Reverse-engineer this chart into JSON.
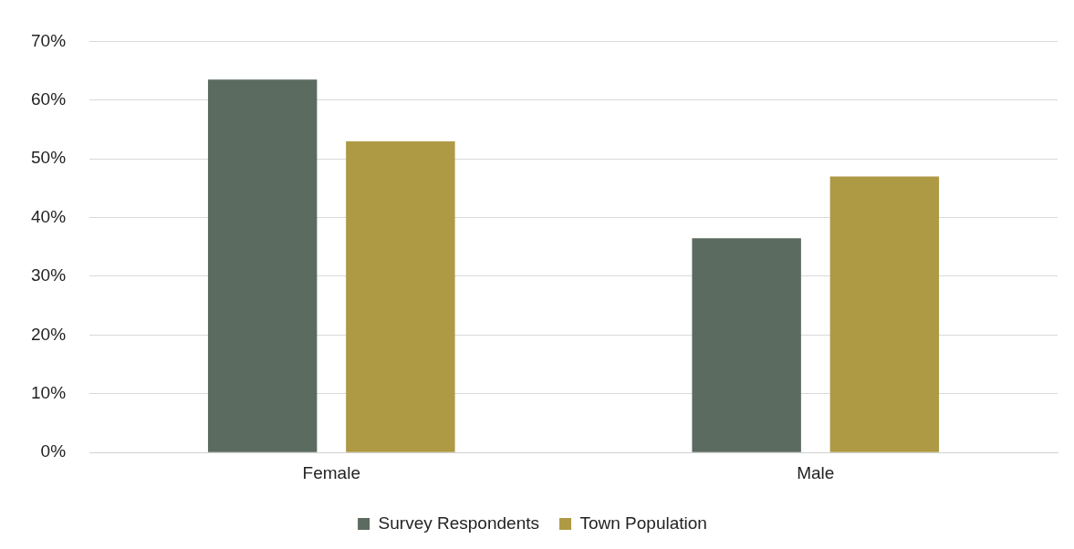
{
  "chart_data": {
    "type": "bar",
    "categories": [
      "Female",
      "Male"
    ],
    "series": [
      {
        "name": "Survey Respondents",
        "color": "#5b6b5f",
        "values": [
          63.5,
          36.5
        ]
      },
      {
        "name": "Town Population",
        "color": "#ae9a45",
        "values": [
          53,
          47
        ]
      }
    ],
    "ylim": [
      0,
      70
    ],
    "yticks": [
      {
        "value": 0,
        "label": "0%"
      },
      {
        "value": 10,
        "label": "10%"
      },
      {
        "value": 20,
        "label": "20%"
      },
      {
        "value": 30,
        "label": "30%"
      },
      {
        "value": 40,
        "label": "40%"
      },
      {
        "value": 50,
        "label": "50%"
      },
      {
        "value": 60,
        "label": "60%"
      },
      {
        "value": 70,
        "label": "70%"
      }
    ],
    "grid": "y",
    "legend": "bottom"
  }
}
